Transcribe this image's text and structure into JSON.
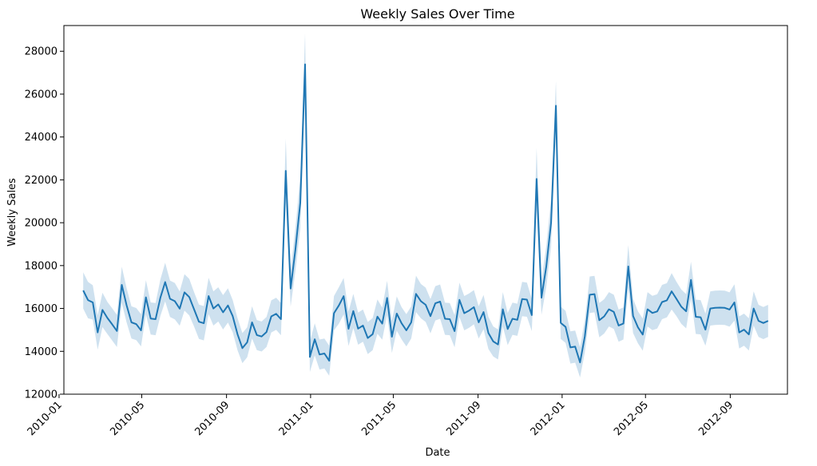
{
  "chart_data": {
    "type": "line",
    "title": "Weekly Sales Over Time",
    "xlabel": "Date",
    "ylabel": "Weekly Sales",
    "x_ticks": [
      "2010-01",
      "2010-05",
      "2010-09",
      "2011-01",
      "2011-05",
      "2011-09",
      "2012-01",
      "2012-05",
      "2012-09"
    ],
    "y_ticks": [
      12000,
      14000,
      16000,
      18000,
      20000,
      22000,
      24000,
      26000,
      28000
    ],
    "ylim": [
      12000,
      29200
    ],
    "xlim": [
      "2010-01-08",
      "2012-11-23"
    ],
    "grid": false,
    "legend": "none",
    "colors": {
      "line": "#1f77b4",
      "band": "#1f77b4"
    },
    "series": [
      {
        "x": [
          "2010-02-05",
          "2010-02-12",
          "2010-02-19",
          "2010-02-26",
          "2010-03-05",
          "2010-03-12",
          "2010-03-19",
          "2010-03-26",
          "2010-04-02",
          "2010-04-09",
          "2010-04-16",
          "2010-04-23",
          "2010-04-30",
          "2010-05-07",
          "2010-05-14",
          "2010-05-21",
          "2010-05-28",
          "2010-06-04",
          "2010-06-11",
          "2010-06-18",
          "2010-06-25",
          "2010-07-02",
          "2010-07-09",
          "2010-07-16",
          "2010-07-23",
          "2010-07-30",
          "2010-08-06",
          "2010-08-13",
          "2010-08-20",
          "2010-08-27",
          "2010-09-03",
          "2010-09-10",
          "2010-09-17",
          "2010-09-24",
          "2010-10-01",
          "2010-10-08",
          "2010-10-15",
          "2010-10-22",
          "2010-10-29",
          "2010-11-05",
          "2010-11-12",
          "2010-11-19",
          "2010-11-26",
          "2010-12-03",
          "2010-12-10",
          "2010-12-17",
          "2010-12-24",
          "2010-12-31",
          "2011-01-07",
          "2011-01-14",
          "2011-01-21",
          "2011-01-28",
          "2011-02-04",
          "2011-02-11",
          "2011-02-18",
          "2011-02-25",
          "2011-03-04",
          "2011-03-11",
          "2011-03-18",
          "2011-03-25",
          "2011-04-01",
          "2011-04-08",
          "2011-04-15",
          "2011-04-22",
          "2011-04-29",
          "2011-05-06",
          "2011-05-13",
          "2011-05-20",
          "2011-05-27",
          "2011-06-03",
          "2011-06-10",
          "2011-06-17",
          "2011-06-24",
          "2011-07-01",
          "2011-07-08",
          "2011-07-15",
          "2011-07-22",
          "2011-07-29",
          "2011-08-05",
          "2011-08-12",
          "2011-08-19",
          "2011-08-26",
          "2011-09-02",
          "2011-09-09",
          "2011-09-16",
          "2011-09-23",
          "2011-09-30",
          "2011-10-07",
          "2011-10-14",
          "2011-10-21",
          "2011-10-28",
          "2011-11-04",
          "2011-11-11",
          "2011-11-18",
          "2011-11-25",
          "2011-12-02",
          "2011-12-09",
          "2011-12-16",
          "2011-12-23",
          "2011-12-30",
          "2012-01-06",
          "2012-01-13",
          "2012-01-20",
          "2012-01-27",
          "2012-02-03",
          "2012-02-10",
          "2012-02-17",
          "2012-02-24",
          "2012-03-02",
          "2012-03-09",
          "2012-03-16",
          "2012-03-23",
          "2012-03-30",
          "2012-04-06",
          "2012-04-13",
          "2012-04-20",
          "2012-04-27",
          "2012-05-04",
          "2012-05-11",
          "2012-05-18",
          "2012-05-25",
          "2012-06-01",
          "2012-06-08",
          "2012-06-15",
          "2012-06-22",
          "2012-06-29",
          "2012-07-06",
          "2012-07-13",
          "2012-07-20",
          "2012-07-27",
          "2012-08-03",
          "2012-08-10",
          "2012-08-17",
          "2012-08-24",
          "2012-08-31",
          "2012-09-07",
          "2012-09-14",
          "2012-09-21",
          "2012-09-28",
          "2012-10-05",
          "2012-10-12",
          "2012-10-19",
          "2012-10-26"
        ],
        "y": [
          16840,
          16390,
          16280,
          14880,
          15930,
          15560,
          15260,
          14950,
          17100,
          16150,
          15350,
          15270,
          14980,
          16520,
          15530,
          15500,
          16500,
          17230,
          16450,
          16340,
          15990,
          16750,
          16530,
          15950,
          15380,
          15310,
          16580,
          16000,
          16190,
          15820,
          16140,
          15640,
          14800,
          14150,
          14420,
          15350,
          14760,
          14690,
          14900,
          15630,
          15750,
          15500,
          22420,
          16930,
          18750,
          20930,
          27390,
          13740,
          14560,
          13850,
          13900,
          13560,
          15780,
          16140,
          16570,
          15050,
          15880,
          15060,
          15200,
          14620,
          14800,
          15620,
          15290,
          16490,
          14680,
          15760,
          15310,
          14980,
          15350,
          16680,
          16340,
          16170,
          15640,
          16240,
          16320,
          15520,
          15500,
          14940,
          16400,
          15780,
          15900,
          16060,
          15350,
          15830,
          14860,
          14460,
          14320,
          15960,
          15040,
          15520,
          15470,
          16440,
          16410,
          15690,
          22040,
          16500,
          17950,
          19990,
          25460,
          15330,
          15140,
          14180,
          14220,
          13480,
          14700,
          16640,
          16670,
          15450,
          15630,
          15960,
          15840,
          15200,
          15300,
          17960,
          15650,
          15120,
          14780,
          15960,
          15790,
          15860,
          16300,
          16380,
          16800,
          16440,
          16080,
          15870,
          17330,
          15610,
          15590,
          15010,
          16000,
          16030,
          16040,
          16030,
          15950,
          16280,
          14880,
          15010,
          14790,
          16000,
          15420,
          15320,
          15420
        ],
        "ci_half": [
          850,
          850,
          800,
          800,
          800,
          750,
          750,
          750,
          850,
          800,
          750,
          750,
          750,
          800,
          750,
          750,
          850,
          900,
          850,
          850,
          800,
          850,
          850,
          800,
          800,
          800,
          850,
          800,
          800,
          800,
          800,
          750,
          750,
          700,
          700,
          750,
          700,
          700,
          700,
          750,
          750,
          750,
          1500,
          850,
          1000,
          1200,
          1450,
          700,
          750,
          700,
          700,
          700,
          800,
          850,
          850,
          800,
          800,
          750,
          750,
          750,
          750,
          800,
          750,
          800,
          750,
          800,
          750,
          750,
          750,
          850,
          800,
          800,
          800,
          800,
          800,
          750,
          750,
          750,
          800,
          800,
          800,
          800,
          750,
          800,
          750,
          700,
          700,
          800,
          750,
          750,
          750,
          800,
          800,
          750,
          1450,
          800,
          950,
          1100,
          1150,
          750,
          750,
          750,
          750,
          700,
          750,
          850,
          850,
          800,
          800,
          800,
          800,
          750,
          750,
          1000,
          800,
          750,
          750,
          800,
          800,
          800,
          800,
          800,
          850,
          800,
          800,
          800,
          850,
          800,
          800,
          750,
          800,
          800,
          800,
          800,
          800,
          850,
          750,
          750,
          750,
          800,
          750,
          750,
          750
        ]
      }
    ]
  }
}
